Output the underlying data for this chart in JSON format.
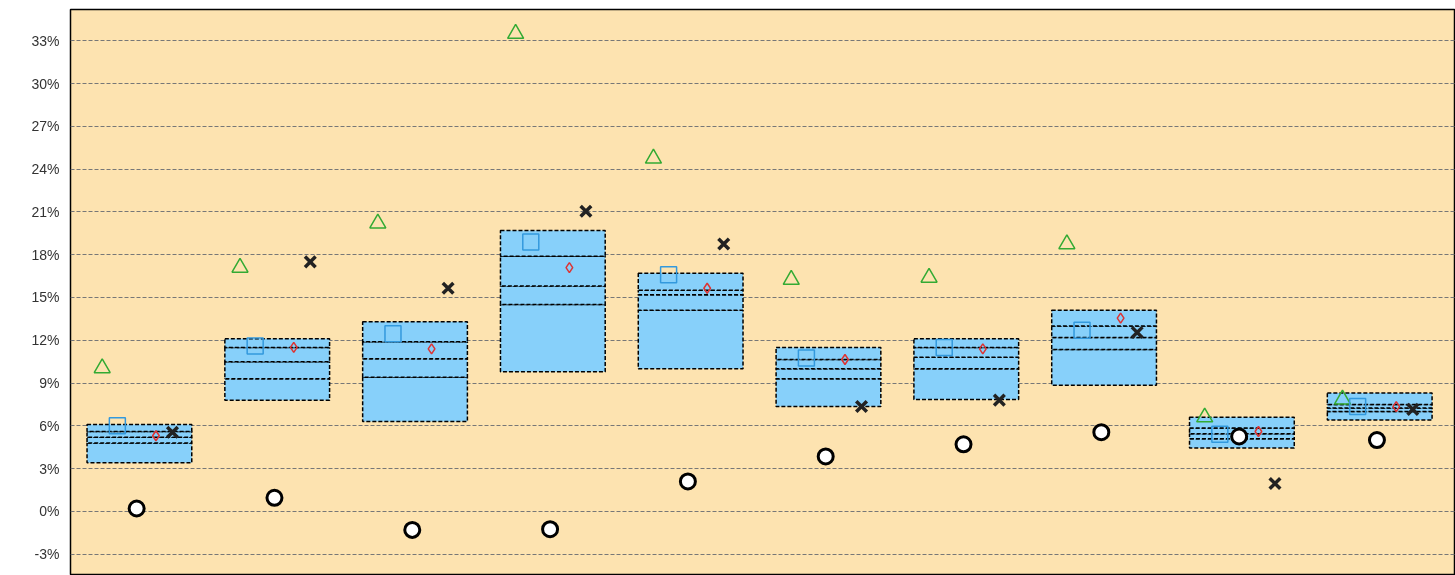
{
  "chart_data": {
    "type": "bar",
    "categories": [
      null,
      null,
      null,
      null,
      null,
      null,
      null,
      null,
      null,
      null
    ],
    "stacked": true,
    "series": [
      {
        "color": "#87d0fa",
        "base": [
          3.4,
          7.8,
          6.3,
          9.8,
          10.0,
          7.35,
          7.85,
          8.85,
          4.45,
          6.4
        ],
        "values": [
          1.4,
          1.5,
          3.1,
          4.7,
          4.1,
          1.95,
          2.15,
          2.5,
          0.65,
          0.6
        ]
      },
      {
        "color": "#87d0fa",
        "values": [
          0.4,
          1.2,
          1.3,
          1.3,
          1.1,
          0.7,
          0.8,
          0.85,
          0.35,
          0.25
        ]
      },
      {
        "color": "#87d0fa",
        "values": [
          0.4,
          1.0,
          1.2,
          2.1,
          0.3,
          0.65,
          0.7,
          0.8,
          0.4,
          0.25
        ]
      },
      {
        "color": "#87d0fa",
        "values": [
          0.5,
          0.6,
          1.4,
          1.8,
          1.2,
          0.85,
          0.6,
          1.1,
          0.75,
          0.8
        ]
      },
      {
        "type": "scatter",
        "marker": "triangle",
        "color": "#33aa33",
        "values": [
          10.05,
          17.1,
          20.2,
          33.5,
          24.75,
          16.25,
          16.4,
          18.75,
          6.6,
          7.85
        ]
      },
      {
        "type": "scatter",
        "marker": "square",
        "color": "#3399dd",
        "values": [
          6.0,
          11.6,
          12.45,
          18.9,
          16.6,
          10.75,
          11.5,
          12.7,
          5.4,
          7.35
        ]
      },
      {
        "type": "scatter",
        "marker": "circle",
        "color": "#000000",
        "values": [
          0.2,
          0.95,
          -1.3,
          -1.25,
          2.1,
          3.85,
          4.7,
          5.55,
          5.25,
          5.0
        ]
      },
      {
        "type": "scatter",
        "marker": "diamond",
        "color": "#dd3333",
        "values": [
          5.3,
          11.5,
          11.4,
          17.1,
          15.65,
          10.65,
          11.4,
          13.55,
          5.6,
          7.35
        ]
      },
      {
        "type": "scatter",
        "marker": "cross",
        "color": "#222222",
        "values": [
          5.55,
          17.5,
          15.65,
          21.05,
          18.75,
          7.35,
          7.8,
          12.55,
          1.95,
          7.15
        ]
      }
    ],
    "ylim": [
      -4.5,
      35.2
    ],
    "yticks": [
      {
        "value": -3,
        "label": "-3%"
      },
      {
        "value": 0,
        "label": "0%"
      },
      {
        "value": 3,
        "label": "3%"
      },
      {
        "value": 6,
        "label": "6%"
      },
      {
        "value": 9,
        "label": "9%"
      },
      {
        "value": 12,
        "label": "12%"
      },
      {
        "value": 15,
        "label": "15%"
      },
      {
        "value": 18,
        "label": "18%"
      },
      {
        "value": 21,
        "label": "21%"
      },
      {
        "value": 24,
        "label": "24%"
      },
      {
        "value": 27,
        "label": "27%"
      },
      {
        "value": 30,
        "label": "30%"
      },
      {
        "value": 33,
        "label": "33%"
      }
    ],
    "grid": "y",
    "tick_labels": "y"
  }
}
